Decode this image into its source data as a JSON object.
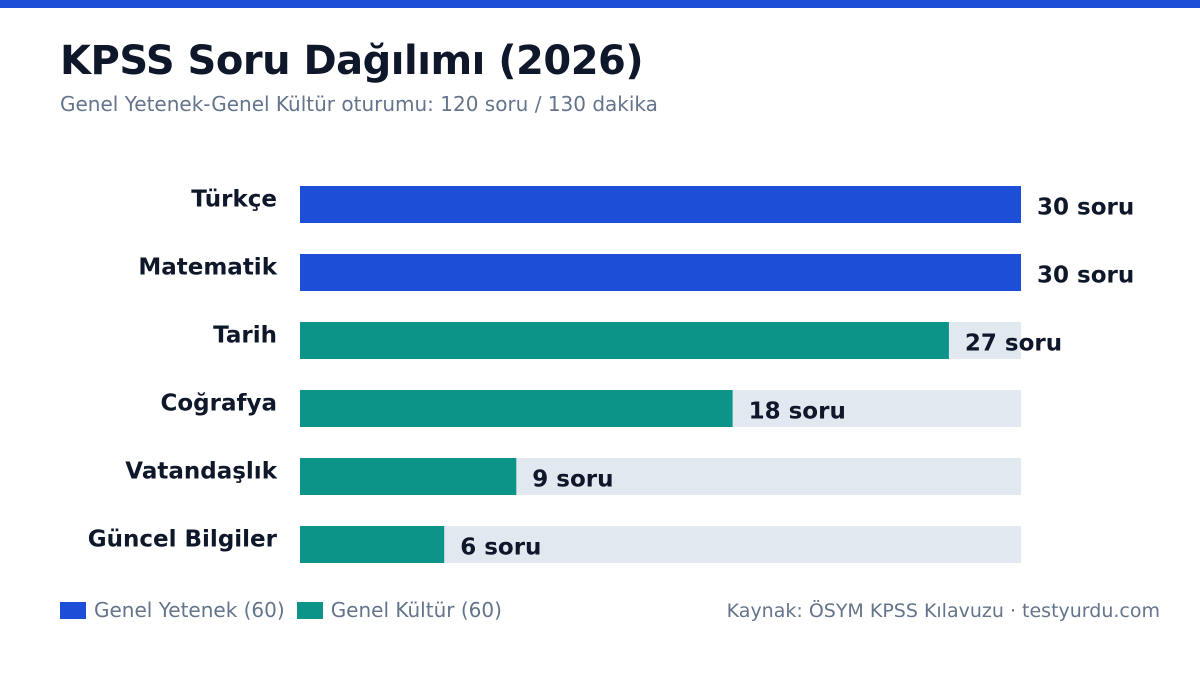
{
  "header": {
    "title": "KPSS Soru Dağılımı (2026)",
    "subtitle": "Genel Yetenek-Genel Kültür oturumu: 120 soru / 130 dakika"
  },
  "colors": {
    "accent": "#1d4ed8",
    "genel_yetenek": "#1d4ed8",
    "genel_kultur": "#0d9488",
    "track": "#e2e8f0"
  },
  "legend": {
    "items": [
      {
        "label": "Genel Yetenek (60)",
        "color": "#1d4ed8"
      },
      {
        "label": "Genel Kültür (60)",
        "color": "#0d9488"
      }
    ]
  },
  "source": "Kaynak: ÖSYM KPSS Kılavuzu · testyurdu.com",
  "chart_data": {
    "type": "bar",
    "orientation": "horizontal",
    "title": "KPSS Soru Dağılımı (2026)",
    "subtitle": "Genel Yetenek-Genel Kültür oturumu: 120 soru / 130 dakika",
    "xlim": [
      0,
      30
    ],
    "grid": false,
    "legend_position": "bottom-left",
    "categories": [
      "Türkçe",
      "Matematik",
      "Tarih",
      "Coğrafya",
      "Vatandaşlık",
      "Güncel Bilgiler"
    ],
    "values": [
      30,
      30,
      27,
      18,
      9,
      6
    ],
    "groups": [
      "Genel Yetenek (60)",
      "Genel Yetenek (60)",
      "Genel Kültür (60)",
      "Genel Kültür (60)",
      "Genel Kültür (60)",
      "Genel Kültür (60)"
    ],
    "value_labels": [
      "30 soru",
      "30 soru",
      "27 soru",
      "18 soru",
      "9 soru",
      "6 soru"
    ]
  }
}
